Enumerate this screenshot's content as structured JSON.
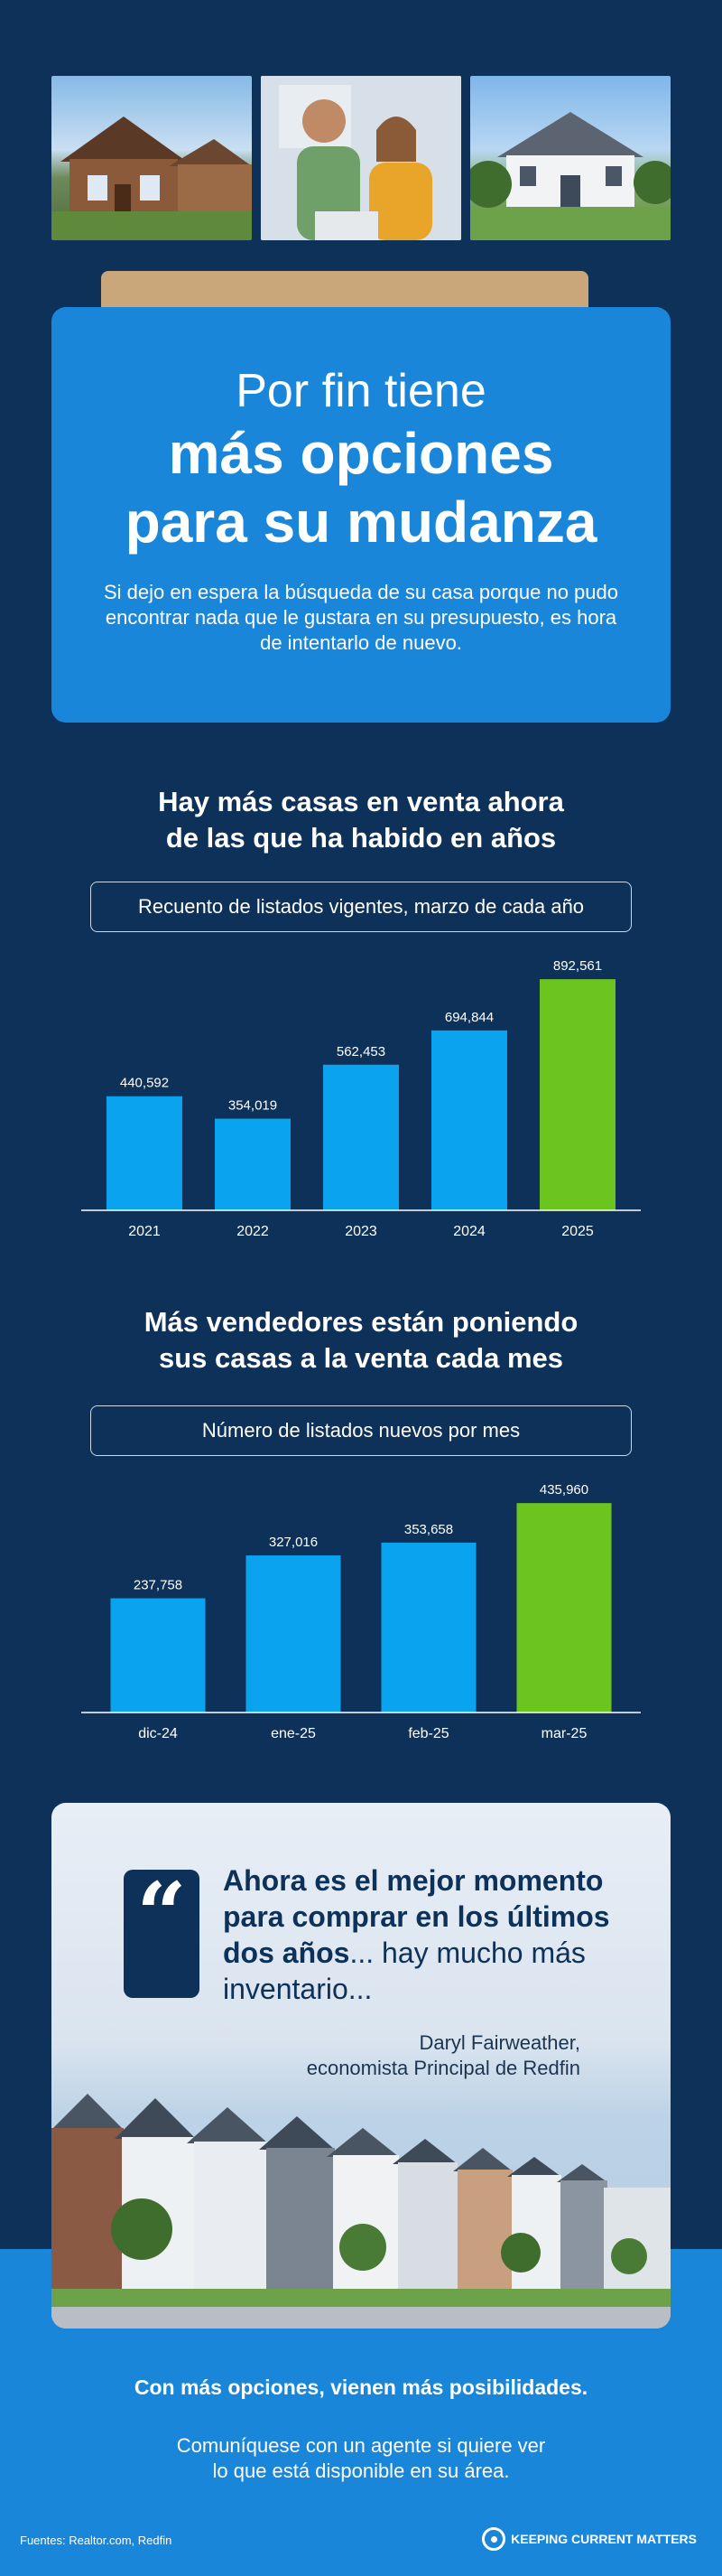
{
  "hero": {
    "title_light": "Por fin tiene",
    "title_bold_line1": "más opciones",
    "title_bold_line2": "para su mudanza",
    "subtitle": "Si dejo en espera la búsqueda de su casa porque no pudo encontrar nada que le gustara en su presupuesto, es hora de intentarlo de nuevo."
  },
  "chart_data": [
    {
      "type": "bar",
      "title": "Hay más casas en venta ahora de las que ha habido en años",
      "subtitle": "Recuento de listados vigentes, marzo de cada año",
      "categories": [
        "2021",
        "2022",
        "2023",
        "2024",
        "2025"
      ],
      "values": [
        440592,
        354019,
        562453,
        694844,
        892561
      ],
      "value_labels": [
        "440,592",
        "354,019",
        "562,453",
        "694,844",
        "892,561"
      ],
      "highlight_index": 4,
      "ylim": [
        0,
        900000
      ],
      "colors": {
        "bar": "#0aa3ef",
        "highlight": "#6cc51e",
        "axis": "#ffffff"
      }
    },
    {
      "type": "bar",
      "title": "Más vendedores están poniendo sus casas a la venta cada mes",
      "subtitle": "Número de listados nuevos por mes",
      "categories": [
        "dic-24",
        "ene-25",
        "feb-25",
        "mar-25"
      ],
      "values": [
        237758,
        327016,
        353658,
        435960
      ],
      "value_labels": [
        "237,758",
        "327,016",
        "353,658",
        "435,960"
      ],
      "highlight_index": 3,
      "ylim": [
        0,
        440000
      ],
      "colors": {
        "bar": "#0aa3ef",
        "highlight": "#6cc51e",
        "axis": "#ffffff"
      }
    }
  ],
  "charts_text": {
    "chart1_title_line1": "Hay más casas en venta ahora",
    "chart1_title_line2": "de las que ha habido en años",
    "chart1_label": "Recuento de listados vigentes, marzo de cada año",
    "chart2_title_line1": "Más vendedores están poniendo",
    "chart2_title_line2": "sus casas a la venta cada mes",
    "chart2_label": "Número de listados nuevos por mes"
  },
  "quote": {
    "mark": "“",
    "bold_part": "Ahora es el mejor momento para comprar en los últimos dos años",
    "regular_part": "... hay mucho más inventario...",
    "author_name": "Daryl Fairweather,",
    "author_title": "economista Principal de Redfin"
  },
  "footer": {
    "headline": "Con más opciones, vienen más posibilidades.",
    "text_line1": "Comuníquese con un agente si quiere ver",
    "text_line2": "lo que está disponible en su área.",
    "sources": "Fuentes: Realtor.com, Redfin",
    "brand": "KEEPING CURRENT MATTERS"
  }
}
